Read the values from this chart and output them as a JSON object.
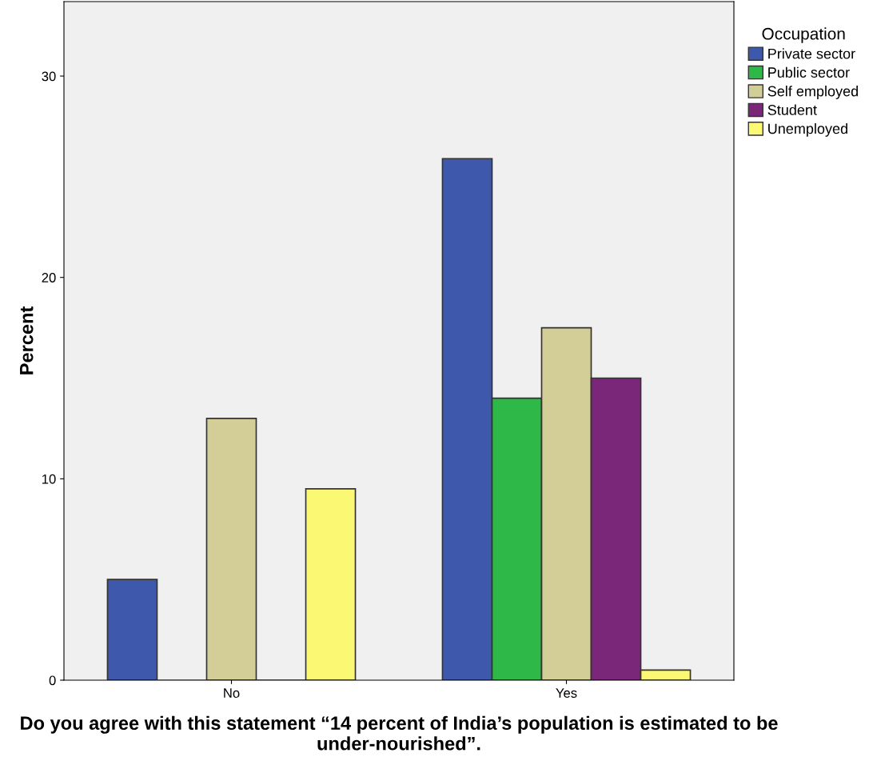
{
  "chart_data": {
    "type": "bar",
    "xlabel": "Do you agree with this statement “14 percent of India’s population is estimated to be under-nourished”.",
    "ylabel": "Percent",
    "legend_title": "Occupation",
    "categories": [
      "No",
      "Yes"
    ],
    "series": [
      {
        "name": "Private sector",
        "color": "#3e58ac",
        "values": [
          5.0,
          25.9
        ]
      },
      {
        "name": "Public sector",
        "color": "#2eb848",
        "values": [
          0,
          14.0
        ]
      },
      {
        "name": "Self employed",
        "color": "#d3ce97",
        "values": [
          13.0,
          17.5
        ]
      },
      {
        "name": "Student",
        "color": "#7b2779",
        "values": [
          0,
          15.0
        ]
      },
      {
        "name": "Unemployed",
        "color": "#fbf873",
        "values": [
          9.5,
          0.5
        ]
      }
    ],
    "ylim": [
      0,
      33.7
    ],
    "yticks": [
      0,
      10,
      20,
      30
    ],
    "grid": false,
    "legend": "top right"
  }
}
